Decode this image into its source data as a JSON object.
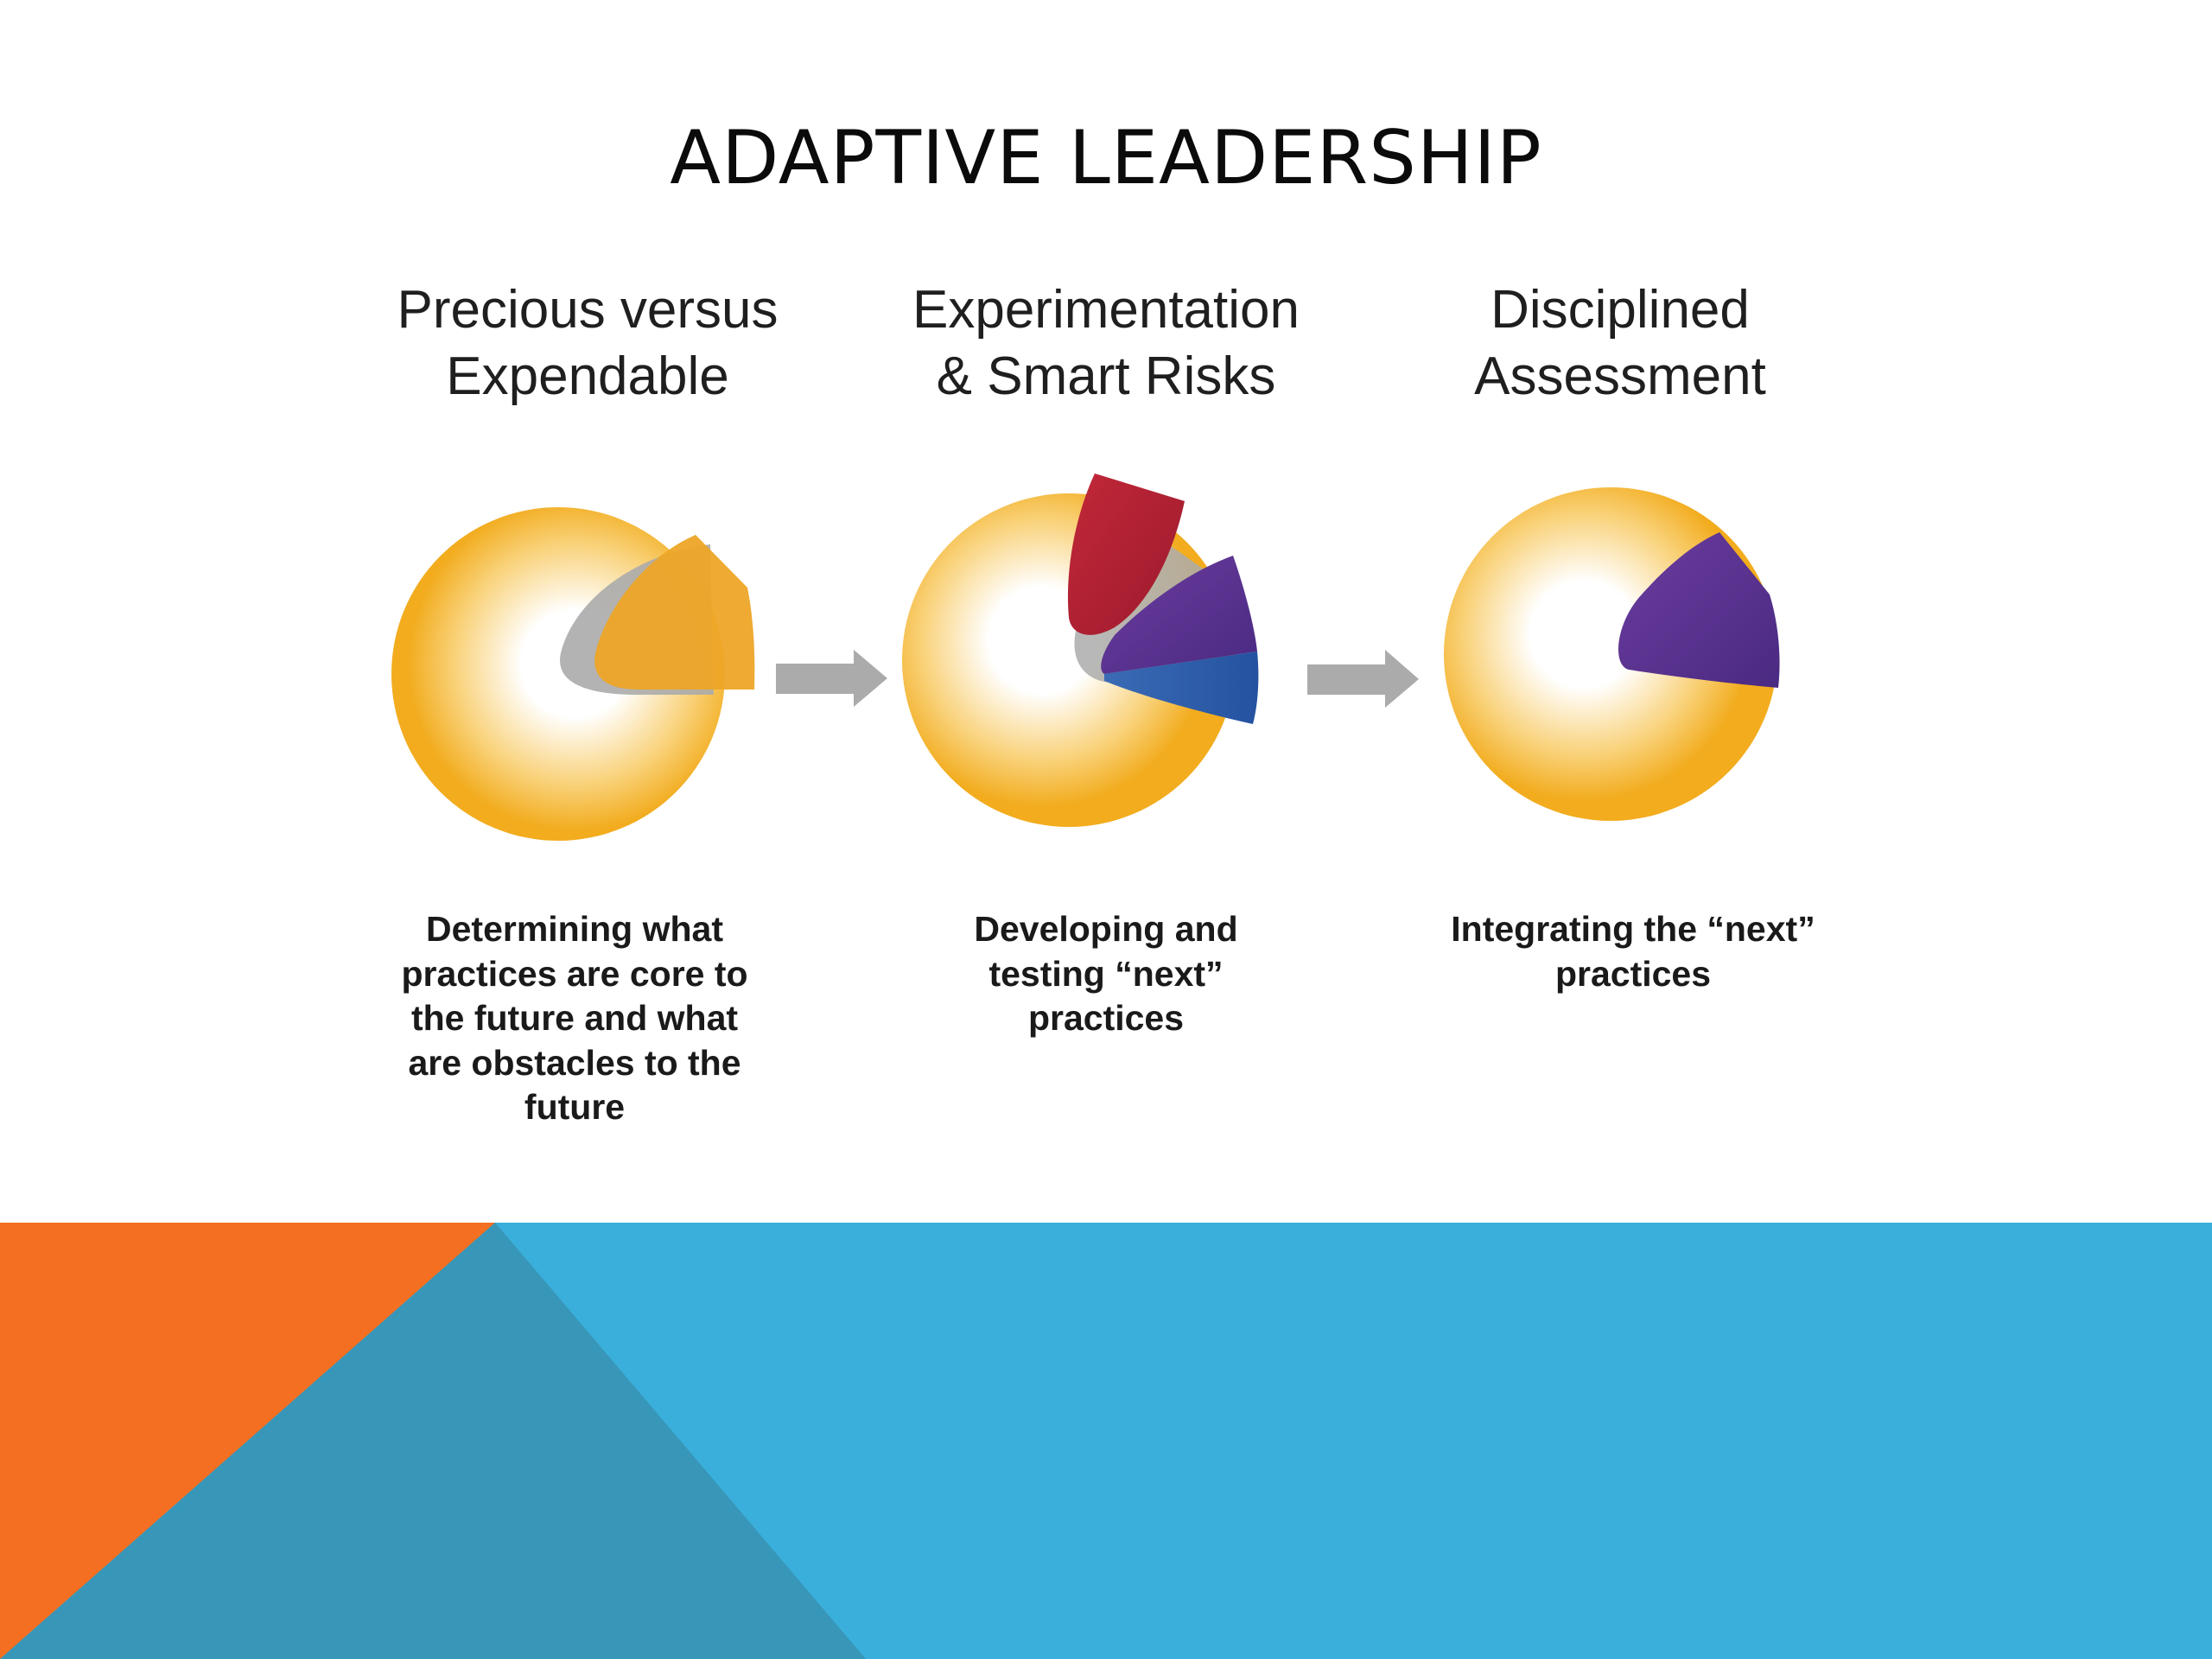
{
  "title": "ADAPTIVE LEADERSHIP",
  "stages": [
    {
      "heading": [
        "Precious versus",
        "Expendable"
      ],
      "caption": [
        "Determining what",
        "practices are core to",
        "the future and what",
        "are obstacles to the",
        "future"
      ]
    },
    {
      "heading": [
        "Experimentation",
        "& Smart Risks"
      ],
      "caption": [
        "Developing and",
        "testing “next”",
        "practices"
      ]
    },
    {
      "heading": [
        "Disciplined",
        "Assessment"
      ],
      "caption": [
        "Integrating the “next”",
        "practices"
      ]
    }
  ],
  "colors": {
    "circle_ring": "#F2AC1E",
    "circle_center": "#FFFFFF",
    "wedge_orange": "#EDA527",
    "wedge_shadow": "#A9A9A9",
    "wedge_red": "#B21F33",
    "wedge_purple": "#5A3393",
    "wedge_blue": "#2F5DA8",
    "arrow": "#ABABAB",
    "footer_blue": "#3AAFDB",
    "footer_orange": "#F46F21",
    "footer_teal": "#3896B8"
  }
}
